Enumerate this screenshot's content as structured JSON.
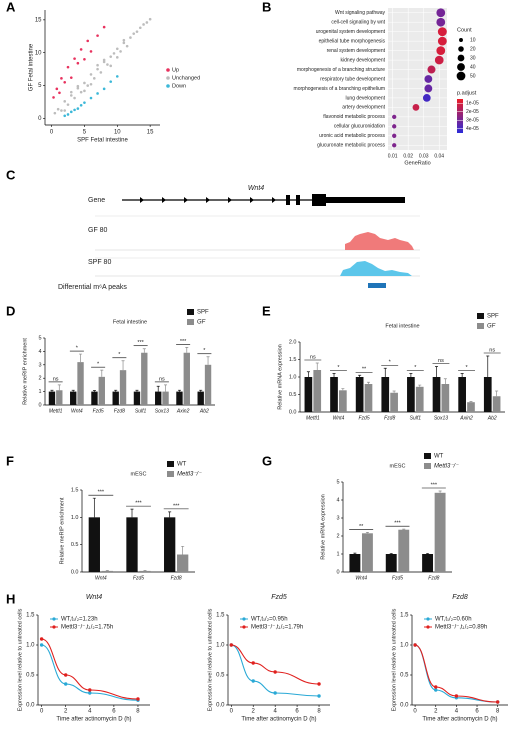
{
  "chart_data": [
    {
      "type": "scatter",
      "panel": "A",
      "xlabel": "SPF Fetal intestine",
      "ylabel": "GF Fetal intestine",
      "xlim": [
        -1,
        16.5
      ],
      "ylim": [
        -1,
        16.5
      ],
      "xticks": [
        0,
        5,
        10,
        15
      ],
      "yticks": [
        0,
        5,
        10,
        15
      ],
      "legend": "right",
      "series": [
        {
          "name": "Up",
          "color": "#e8325e",
          "x": [
            0.3,
            0.8,
            1.2,
            1.5,
            2,
            2.5,
            3,
            3.5,
            4,
            4.5,
            5,
            5.5,
            6,
            7,
            8
          ],
          "values": [
            3.2,
            4.5,
            3.9,
            6.1,
            5.5,
            7.8,
            6.2,
            9.1,
            8.4,
            10.5,
            9.0,
            11.8,
            10.2,
            12.6,
            13.9
          ]
        },
        {
          "name": "Unchanged",
          "color": "#bdbdbd",
          "x": [
            0.5,
            1,
            1.5,
            2,
            2.5,
            3,
            3.5,
            4,
            4.5,
            5,
            5.5,
            6,
            6.5,
            7,
            7.5,
            8,
            8.5,
            9,
            9.5,
            10,
            10.5,
            11,
            11.5,
            12,
            12.5,
            13,
            13.5,
            14,
            14.5,
            15,
            3,
            5,
            7,
            9,
            11,
            2,
            4,
            6,
            8,
            10
          ],
          "values": [
            0.8,
            1.4,
            1.2,
            2.6,
            2.1,
            3.5,
            3.1,
            4.6,
            4.0,
            5.4,
            5.0,
            6.7,
            6.1,
            7.5,
            7.0,
            8.6,
            8.2,
            9.4,
            9.9,
            10.6,
            10.2,
            11.5,
            11.0,
            12.3,
            12.9,
            13.2,
            13.8,
            14.3,
            14.6,
            15.1,
            4.0,
            4.2,
            8.1,
            8.0,
            11.9,
            1.2,
            4.9,
            5.2,
            8.9,
            9.3
          ]
        },
        {
          "name": "Down",
          "color": "#3cb8d8",
          "x": [
            2,
            2.5,
            3,
            3.5,
            4,
            4.5,
            5,
            6,
            7,
            8,
            9,
            10
          ],
          "values": [
            0.4,
            0.6,
            1.0,
            1.3,
            1.5,
            2.0,
            2.4,
            3.1,
            3.8,
            4.5,
            5.6,
            6.4
          ]
        }
      ]
    },
    {
      "type": "dot",
      "panel": "B",
      "xlabel": "GeneRatio",
      "categories": [
        "Wnt signaling pathway",
        "cell-cell signaling by wnt",
        "urogenital system development",
        "epithelial tube morphogenesis",
        "renal system development",
        "kidney development",
        "morphogenesis of a branching structure",
        "respiratory tube development",
        "morphogenesis of a branching epithelium",
        "lung development",
        "artery development",
        "flavonoid metabolic process",
        "cellular glucuronidation",
        "uronic acid metabolic process",
        "glucuronate metabolic process"
      ],
      "values": [
        0.041,
        0.041,
        0.042,
        0.042,
        0.041,
        0.04,
        0.035,
        0.033,
        0.033,
        0.032,
        0.025,
        0.011,
        0.011,
        0.011,
        0.011
      ],
      "sizes": [
        50,
        50,
        52,
        51,
        50,
        49,
        42,
        40,
        40,
        39,
        30,
        12,
        12,
        12,
        12
      ],
      "p_adjust": [
        3e-05,
        3e-05,
        1e-05,
        1e-05,
        1e-05,
        1.2e-05,
        1.5e-05,
        3.3e-05,
        3.3e-05,
        4e-05,
        1.3e-05,
        2.8e-05,
        2.8e-05,
        2.8e-05,
        2.8e-05
      ],
      "xlim": [
        0.007,
        0.045
      ],
      "xticks": [
        0.01,
        0.02,
        0.03,
        0.04
      ],
      "size_title": "Count",
      "size_ticks": [
        10,
        20,
        30,
        40,
        50
      ],
      "color_title": "p.adjust",
      "color_lim": [
        5e-06,
        4.5e-05
      ],
      "color_range": [
        "#ee1c25",
        "#2b2bd9"
      ],
      "color_ticks": [
        {
          "value": 1e-05,
          "label": "1e-05"
        },
        {
          "value": 2e-05,
          "label": "2e-05"
        },
        {
          "value": 3e-05,
          "label": "3e-05"
        },
        {
          "value": 4e-05,
          "label": "4e-05"
        }
      ]
    },
    {
      "type": "bar",
      "panel": "D",
      "title": "Fetal intestine",
      "ylabel": "Relative meRIP enrichment",
      "categories": [
        "Mettl1",
        "Wnt4",
        "Fzd5",
        "Fzd8",
        "Sulf1",
        "Sox13",
        "Axin2",
        "Ab2"
      ],
      "series": [
        {
          "name": "SPF",
          "color": "#111111",
          "values": [
            1,
            1,
            1,
            1,
            1,
            1,
            1,
            1
          ],
          "errors": [
            0.1,
            0.1,
            0.08,
            0.1,
            0.1,
            0.4,
            0.1,
            0.1
          ]
        },
        {
          "name": "GF",
          "color": "#8c8c8c",
          "values": [
            1.1,
            3.2,
            2.1,
            2.6,
            3.9,
            1.0,
            3.9,
            3.0
          ],
          "errors": [
            0.4,
            0.6,
            0.5,
            0.7,
            0.3,
            0.5,
            0.4,
            0.6
          ]
        }
      ],
      "annotations": [
        "ns",
        "*",
        "*",
        "*",
        "***",
        "ns",
        "***",
        "*"
      ],
      "ylim": [
        0,
        5
      ],
      "yticks": [
        0,
        1,
        2,
        3,
        4,
        5
      ],
      "legend": "top right"
    },
    {
      "type": "bar",
      "panel": "E",
      "title": "Fetal intestine",
      "ylabel": "Relative mRNA expression",
      "categories": [
        "Mettl1",
        "Wnt4",
        "Fzd5",
        "Fzd8",
        "Sulf1",
        "Sox13",
        "Axin2",
        "Ab2"
      ],
      "series": [
        {
          "name": "SPF",
          "color": "#111111",
          "values": [
            1,
            1,
            1,
            1,
            1,
            1,
            1,
            1
          ],
          "errors": [
            0.15,
            0.1,
            0.05,
            0.25,
            0.1,
            0.3,
            0.1,
            0.6
          ]
        },
        {
          "name": "GF",
          "color": "#8c8c8c",
          "values": [
            1.2,
            0.62,
            0.8,
            0.55,
            0.72,
            0.8,
            0.28,
            0.45
          ],
          "errors": [
            0.2,
            0.05,
            0.05,
            0.05,
            0.05,
            0.15,
            0.02,
            0.15
          ]
        }
      ],
      "annotations": [
        "ns",
        "*",
        "**",
        "*",
        "*",
        "ns",
        "*",
        "ns"
      ],
      "ylim": [
        0,
        2
      ],
      "yticks": [
        {
          "value": 0,
          "label": "0.0"
        },
        0.5,
        {
          "value": 1,
          "label": "1.0"
        },
        1.5,
        {
          "value": 2,
          "label": "2.0"
        }
      ],
      "legend": "top right"
    },
    {
      "type": "bar",
      "panel": "F",
      "title": "mESC",
      "ylabel": "Relative meRIP enrichment",
      "categories": [
        "Wnt4",
        "Fzd5",
        "Fzd8"
      ],
      "series": [
        {
          "name": "WT",
          "color": "#111111",
          "values": [
            1,
            1,
            1
          ],
          "errors": [
            0.35,
            0.15,
            0.1
          ]
        },
        {
          "name": "Mettl3⁻/⁻",
          "color": "#8c8c8c",
          "values": [
            0.02,
            0.02,
            0.32
          ],
          "errors": [
            0.01,
            0.01,
            0.15
          ]
        }
      ],
      "annotations": [
        "***",
        "***",
        "***"
      ],
      "ylim": [
        0,
        1.5
      ],
      "yticks": [
        {
          "value": 0,
          "label": "0.0"
        },
        0.5,
        {
          "value": 1,
          "label": "1.0"
        },
        1.5
      ],
      "legend": "top right"
    },
    {
      "type": "bar",
      "panel": "G",
      "title": "mESC",
      "ylabel": "Relative mRNA expression",
      "categories": [
        "Wnt4",
        "Fzd5",
        "Fzd8"
      ],
      "series": [
        {
          "name": "WT",
          "color": "#111111",
          "values": [
            1,
            1,
            1
          ],
          "errors": [
            0.05,
            0.03,
            0.03
          ]
        },
        {
          "name": "Mettl3⁻/⁻",
          "color": "#8c8c8c",
          "values": [
            2.15,
            2.35,
            4.4
          ],
          "errors": [
            0.05,
            0.03,
            0.1
          ]
        }
      ],
      "annotations": [
        "**",
        "***",
        "***"
      ],
      "ylim": [
        0,
        5
      ],
      "yticks": [
        0,
        1,
        2,
        3,
        4,
        5
      ],
      "legend": "top right"
    },
    {
      "type": "line",
      "panel": "H",
      "title": "Wnt4",
      "xlabel": "Time after actinomycin D (h)",
      "ylabel": "Expression level relative to untreated cells",
      "x": [
        0,
        2,
        4,
        8
      ],
      "xlim": [
        -0.3,
        9
      ],
      "xticks": [
        0,
        2,
        4,
        6,
        8
      ],
      "ylim": [
        0,
        1.5
      ],
      "yticks": [
        {
          "value": 0,
          "label": "0.0"
        },
        0.5,
        {
          "value": 1,
          "label": "1.0"
        },
        1.5
      ],
      "series": [
        {
          "name": "WT,t₁/₂=1.23h",
          "color": "#29a9d6",
          "values": [
            1.0,
            0.35,
            0.2,
            0.08
          ]
        },
        {
          "name": "Mettl3⁻/⁻,t₁/₂=1.75h",
          "color": "#e0201e",
          "values": [
            1.1,
            0.5,
            0.25,
            0.1
          ]
        }
      ]
    },
    {
      "type": "line",
      "title": "Fzd5",
      "xlabel": "Time after actinomycin D (h)",
      "ylabel": "Expression level relative to untreated cells",
      "x": [
        0,
        2,
        4,
        8
      ],
      "xlim": [
        -0.3,
        9
      ],
      "xticks": [
        0,
        2,
        4,
        6,
        8
      ],
      "ylim": [
        0,
        1.5
      ],
      "yticks": [
        {
          "value": 0,
          "label": "0.0"
        },
        0.5,
        {
          "value": 1,
          "label": "1.0"
        },
        1.5
      ],
      "series": [
        {
          "name": "WT,t₁/₂=0.95h",
          "color": "#29a9d6",
          "values": [
            1.0,
            0.4,
            0.2,
            0.15
          ]
        },
        {
          "name": "Mettl3⁻/⁻,t₁/₂=1.79h",
          "color": "#e0201e",
          "values": [
            1.0,
            0.7,
            0.55,
            0.35
          ]
        }
      ]
    },
    {
      "type": "line",
      "title": "Fzd8",
      "xlabel": "Time after actinomycin D (h)",
      "ylabel": "Expression level relative to untreated cells",
      "x": [
        0,
        2,
        4,
        8
      ],
      "xlim": [
        -0.3,
        9
      ],
      "xticks": [
        0,
        2,
        4,
        6,
        8
      ],
      "ylim": [
        0,
        1.5
      ],
      "yticks": [
        {
          "value": 0,
          "label": "0.0"
        },
        0.5,
        {
          "value": 1,
          "label": "1.0"
        },
        1.5
      ],
      "series": [
        {
          "name": "WT,t₁/₂=0.60h",
          "color": "#29a9d6",
          "values": [
            1.0,
            0.25,
            0.12,
            0.05
          ]
        },
        {
          "name": "Mettl3⁻/⁻,t₁/₂=0.89h",
          "color": "#e0201e",
          "values": [
            1.0,
            0.3,
            0.15,
            0.05
          ]
        }
      ]
    }
  ],
  "track": {
    "panel": "C",
    "gene_label": "Gene",
    "gene": "Wnt4",
    "tracks": [
      "GF  80",
      "SPF  80"
    ],
    "peaks_label": "Differential m⁶A peaks"
  }
}
